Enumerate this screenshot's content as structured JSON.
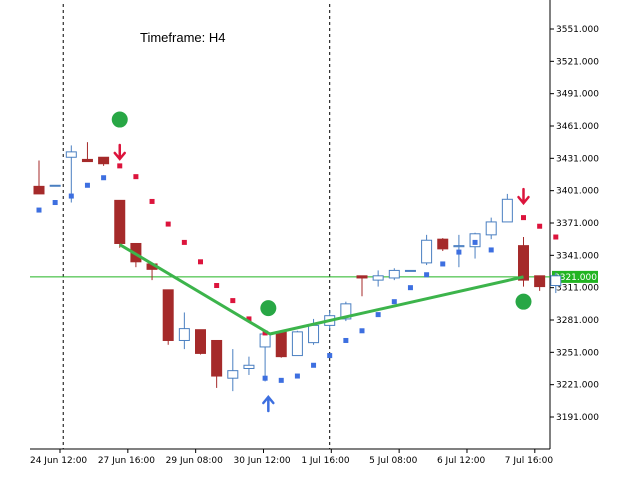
{
  "annotation": "Timeframe: H4",
  "colors": {
    "bull_border": "#4a7fc1",
    "bear_fill": "#a52a2a",
    "dot_blue": "#3d6fe0",
    "dot_red": "#dc143c",
    "zigzag": "#3cb44b",
    "circle": "#28a745",
    "hline": "#22b422",
    "arrow_down": "#dc143c",
    "arrow_up": "#3d6fe0"
  },
  "chart_data": {
    "type": "candlestick",
    "timeframe": "H4",
    "ylim": [
      3170,
      3565
    ],
    "y_ticks": [
      3551,
      3521,
      3491,
      3461,
      3431,
      3401,
      3371,
      3341,
      3311,
      3281,
      3251,
      3221,
      3191
    ],
    "y_tick_labels": [
      "3551.000",
      "3521.000",
      "3491.000",
      "3461.000",
      "3431.000",
      "3401.000",
      "3371.000",
      "3341.000",
      "3311.000",
      "3281.000",
      "3251.000",
      "3221.000",
      "3191.000"
    ],
    "x_tick_labels": [
      {
        "index": 1.3,
        "label": "24 Jun 12:00"
      },
      {
        "index": 5.5,
        "label": "27 Jun 16:00"
      },
      {
        "index": 9.7,
        "label": "29 Jun 08:00"
      },
      {
        "index": 13.9,
        "label": "30 Jun 12:00"
      },
      {
        "index": 18.1,
        "label": "1 Jul 16:00"
      },
      {
        "index": 22.3,
        "label": "5 Jul 08:00"
      },
      {
        "index": 26.5,
        "label": "6 Jul 12:00"
      },
      {
        "index": 30.7,
        "label": "7 Jul 16:00"
      }
    ],
    "candles": [
      {
        "o": 3405,
        "h": 3429,
        "l": 3400,
        "c": 3398
      },
      {
        "o": 3406,
        "h": 3406,
        "l": 3406,
        "c": 3406
      },
      {
        "o": 3432,
        "h": 3443,
        "l": 3390,
        "c": 3437
      },
      {
        "o": 3430,
        "h": 3446,
        "l": 3428,
        "c": 3428
      },
      {
        "o": 3432,
        "h": 3432,
        "l": 3424,
        "c": 3426
      },
      {
        "o": 3392,
        "h": 3392,
        "l": 3348,
        "c": 3352
      },
      {
        "o": 3352,
        "h": 3352,
        "l": 3330,
        "c": 3335
      },
      {
        "o": 3333,
        "h": 3333,
        "l": 3318,
        "c": 3328
      },
      {
        "o": 3309,
        "h": 3309,
        "l": 3258,
        "c": 3262
      },
      {
        "o": 3262,
        "h": 3288,
        "l": 3254,
        "c": 3273
      },
      {
        "o": 3272,
        "h": 3272,
        "l": 3249,
        "c": 3250
      },
      {
        "o": 3262,
        "h": 3262,
        "l": 3218,
        "c": 3229
      },
      {
        "o": 3227,
        "h": 3254,
        "l": 3215,
        "c": 3234
      },
      {
        "o": 3236,
        "h": 3247,
        "l": 3230,
        "c": 3239
      },
      {
        "o": 3256,
        "h": 3272,
        "l": 3224,
        "c": 3268
      },
      {
        "o": 3270,
        "h": 3270,
        "l": 3246,
        "c": 3247
      },
      {
        "o": 3248,
        "h": 3271,
        "l": 3248,
        "c": 3270
      },
      {
        "o": 3260,
        "h": 3282,
        "l": 3258,
        "c": 3276
      },
      {
        "o": 3276,
        "h": 3290,
        "l": 3272,
        "c": 3285
      },
      {
        "o": 3282,
        "h": 3298,
        "l": 3280,
        "c": 3296
      },
      {
        "o": 3322,
        "h": 3322,
        "l": 3303,
        "c": 3320
      },
      {
        "o": 3318,
        "h": 3327,
        "l": 3312,
        "c": 3322
      },
      {
        "o": 3320,
        "h": 3329,
        "l": 3318,
        "c": 3327
      },
      {
        "o": 3327,
        "h": 3327,
        "l": 3327,
        "c": 3327
      },
      {
        "o": 3334,
        "h": 3360,
        "l": 3332,
        "c": 3355
      },
      {
        "o": 3356,
        "h": 3357,
        "l": 3345,
        "c": 3347
      },
      {
        "o": 3349,
        "h": 3360,
        "l": 3330,
        "c": 3350
      },
      {
        "o": 3349,
        "h": 3362,
        "l": 3338,
        "c": 3361
      },
      {
        "o": 3360,
        "h": 3376,
        "l": 3356,
        "c": 3372
      },
      {
        "o": 3372,
        "h": 3398,
        "l": 3372,
        "c": 3393
      },
      {
        "o": 3350,
        "h": 3358,
        "l": 3312,
        "c": 3318
      },
      {
        "o": 3322,
        "h": 3322,
        "l": 3308,
        "c": 3312
      },
      {
        "o": 3313,
        "h": 3325,
        "l": 3306,
        "c": 3322
      }
    ],
    "blue_dots": [
      {
        "i": 0,
        "y": 3383
      },
      {
        "i": 1,
        "y": 3390
      },
      {
        "i": 2,
        "y": 3396
      },
      {
        "i": 3,
        "y": 3406
      },
      {
        "i": 4,
        "y": 3413
      },
      {
        "i": 14,
        "y": 3227
      },
      {
        "i": 15,
        "y": 3225
      },
      {
        "i": 16,
        "y": 3229
      },
      {
        "i": 17,
        "y": 3239
      },
      {
        "i": 18,
        "y": 3248
      },
      {
        "i": 19,
        "y": 3262
      },
      {
        "i": 20,
        "y": 3271
      },
      {
        "i": 21,
        "y": 3286
      },
      {
        "i": 22,
        "y": 3298
      },
      {
        "i": 23,
        "y": 3311
      },
      {
        "i": 24,
        "y": 3323
      },
      {
        "i": 25,
        "y": 3333
      },
      {
        "i": 26,
        "y": 3344
      },
      {
        "i": 27,
        "y": 3353
      },
      {
        "i": 28,
        "y": 3346
      }
    ],
    "red_dots": [
      {
        "i": 5,
        "y": 3424
      },
      {
        "i": 6,
        "y": 3414
      },
      {
        "i": 7,
        "y": 3391
      },
      {
        "i": 8,
        "y": 3370
      },
      {
        "i": 9,
        "y": 3353
      },
      {
        "i": 10,
        "y": 3335
      },
      {
        "i": 11,
        "y": 3313
      },
      {
        "i": 12,
        "y": 3299
      },
      {
        "i": 13,
        "y": 3282
      },
      {
        "i": 14,
        "y": 3269
      },
      {
        "i": 30,
        "y": 3376
      },
      {
        "i": 31,
        "y": 3368
      },
      {
        "i": 32,
        "y": 3358
      }
    ],
    "zigzag": [
      {
        "i": 5,
        "y": 3351
      },
      {
        "i": 14.3,
        "y": 3268
      },
      {
        "i": 30,
        "y": 3321
      }
    ],
    "circles": [
      {
        "i": 5,
        "y": 3467
      },
      {
        "i": 14.2,
        "y": 3292
      },
      {
        "i": 30,
        "y": 3298
      }
    ],
    "arrows_down": [
      {
        "i": 5,
        "y": 3436
      },
      {
        "i": 30,
        "y": 3395
      }
    ],
    "arrows_up": [
      {
        "i": 14.2,
        "y": 3204
      }
    ],
    "separators": [
      1.5,
      18.0
    ],
    "current_price": 3321,
    "current_price_label": "3321.000"
  }
}
